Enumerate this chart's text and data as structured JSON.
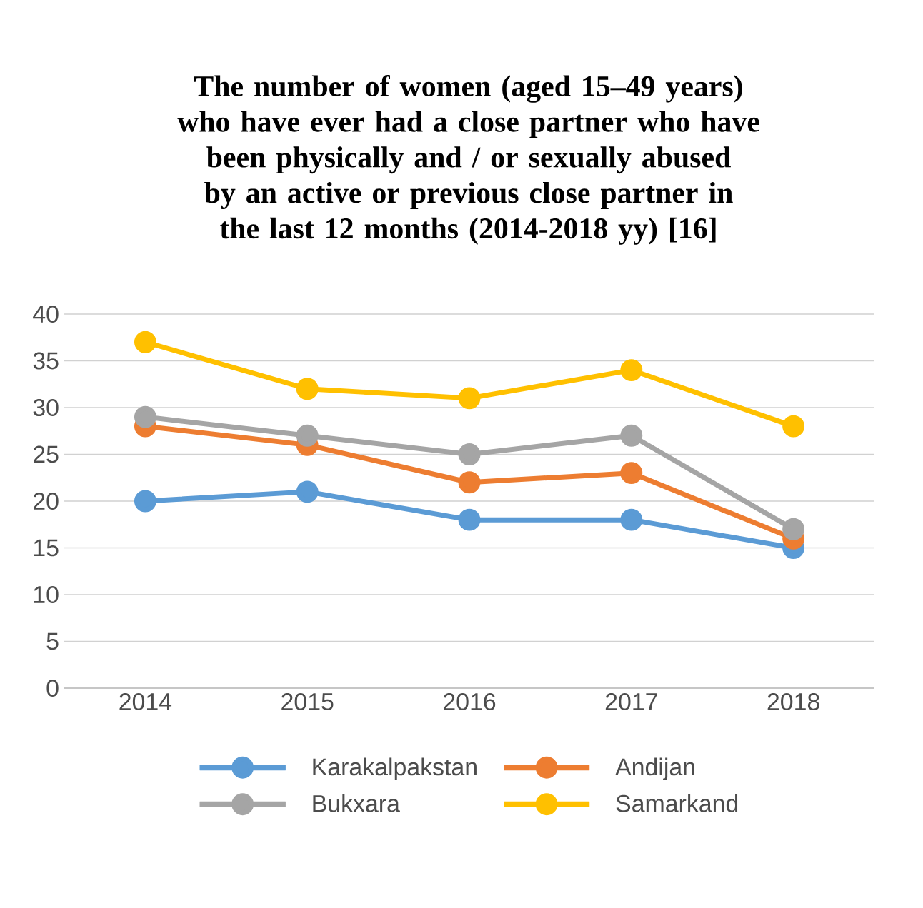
{
  "chart_data": {
    "type": "line",
    "title": "The number of women (aged 15–49 years) who have ever had a close partner who have been physically and / or sexually abused by an active or previous close partner in the last 12 months (2014-2018 yy) [16]",
    "categories": [
      "2014",
      "2015",
      "2016",
      "2017",
      "2018"
    ],
    "series": [
      {
        "name": "Karakalpakstan",
        "color": "#5b9bd5",
        "values": [
          20,
          21,
          18,
          18,
          15
        ]
      },
      {
        "name": "Andijan",
        "color": "#ed7d31",
        "values": [
          28,
          26,
          22,
          23,
          16
        ]
      },
      {
        "name": "Bukxara",
        "color": "#a5a5a5",
        "values": [
          29,
          27,
          25,
          27,
          17
        ]
      },
      {
        "name": "Samarkand",
        "color": "#ffc000",
        "values": [
          37,
          32,
          31,
          34,
          28
        ]
      }
    ],
    "ylim": [
      0,
      40
    ],
    "yticks": [
      0,
      5,
      10,
      15,
      20,
      25,
      30,
      35,
      40
    ],
    "grid": "y",
    "legend": "bottom",
    "marker": "circle",
    "line_style": "solid"
  }
}
